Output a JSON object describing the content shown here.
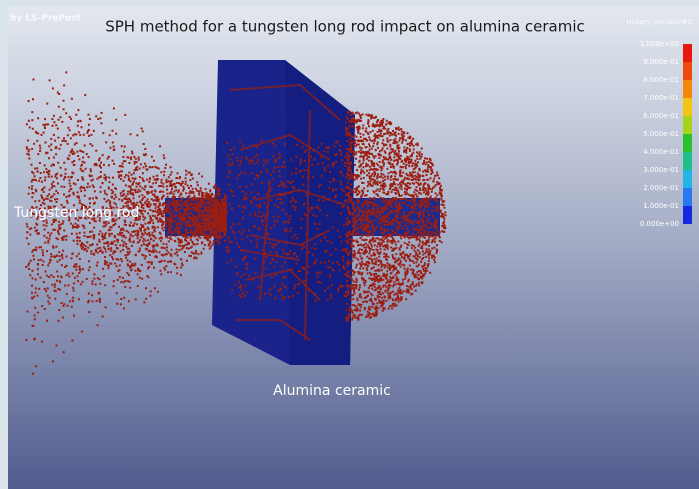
{
  "header": {
    "title": "SPH method for a tungsten long rod impact on alumina ceramic",
    "watermark": "by LS-PrePost"
  },
  "labels": {
    "rod": "Tungsten long rod",
    "ceramic": "Alumina ceramic"
  },
  "legend": {
    "title": "History Variable#2",
    "ticks": [
      "1.000e+00",
      "9.000e-01",
      "8.000e-01",
      "7.000e-01",
      "6.000e-01",
      "5.000e-01",
      "4.000e-01",
      "3.000e-01",
      "2.000e-01",
      "1.000e-01",
      "0.000e+00"
    ]
  }
}
